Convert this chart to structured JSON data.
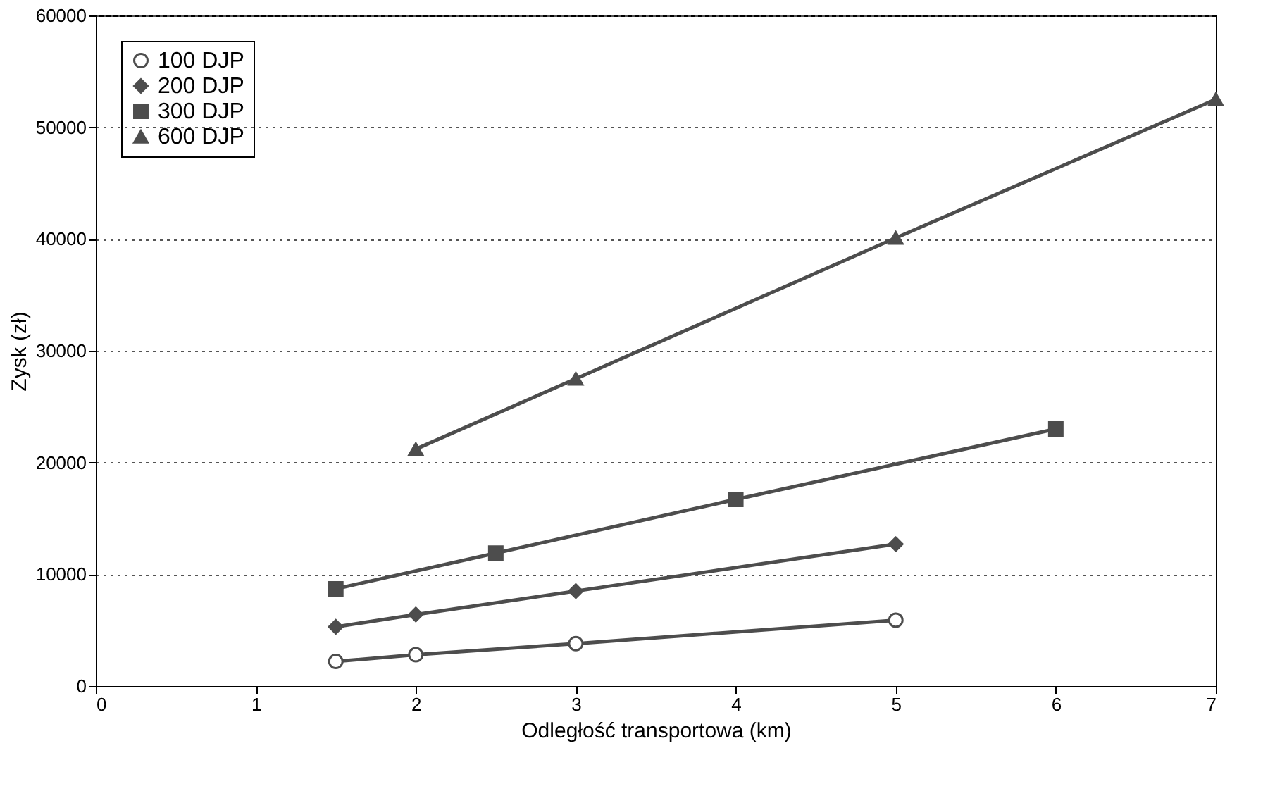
{
  "chart_data": {
    "type": "line",
    "xlabel": "Odległość transportowa (km)",
    "ylabel": "Zysk (zł)",
    "xlim": [
      0,
      7
    ],
    "xticks": [
      0,
      1,
      2,
      3,
      4,
      5,
      6,
      7
    ],
    "ylim": [
      0,
      60000
    ],
    "yticks": [
      0,
      10000,
      20000,
      30000,
      40000,
      50000,
      60000
    ],
    "grid": "y",
    "legend": "top left",
    "line_style": "solid",
    "series": [
      {
        "name": "100 DJP",
        "color": "#4d4d4d",
        "marker": "circle",
        "x": [
          1.5,
          2,
          3,
          5
        ],
        "values": [
          2200,
          2800,
          3800,
          5900
        ]
      },
      {
        "name": "200 DJP",
        "color": "#4d4d4d",
        "marker": "diamond",
        "x": [
          1.5,
          2,
          3,
          5
        ],
        "values": [
          5300,
          6400,
          8500,
          12700
        ]
      },
      {
        "name": "300 DJP",
        "color": "#4d4d4d",
        "marker": "square",
        "x": [
          1.5,
          2.5,
          4,
          6
        ],
        "values": [
          8700,
          11900,
          16700,
          23000
        ]
      },
      {
        "name": "600 DJP",
        "color": "#4d4d4d",
        "marker": "triangle",
        "x": [
          2,
          3,
          5,
          7
        ],
        "values": [
          21200,
          27500,
          40100,
          52500
        ]
      }
    ]
  }
}
